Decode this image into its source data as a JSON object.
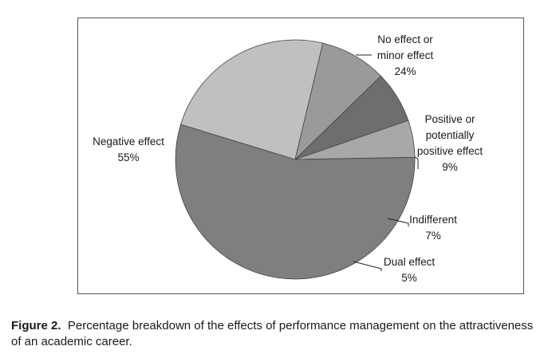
{
  "chart_data": {
    "type": "pie",
    "slices": [
      {
        "label_lines": [
          "No effect or",
          "minor effect"
        ],
        "value": 24,
        "value_label": "24%",
        "color": "#c0c0c0"
      },
      {
        "label_lines": [
          "Positive or",
          "potentially",
          "positive effect"
        ],
        "value": 9,
        "value_label": "9%",
        "color": "#9a9a9a"
      },
      {
        "label_lines": [
          "Indifferent"
        ],
        "value": 7,
        "value_label": "7%",
        "color": "#6e6e6e"
      },
      {
        "label_lines": [
          "Dual effect"
        ],
        "value": 5,
        "value_label": "5%",
        "color": "#a8a8a8"
      },
      {
        "label_lines": [
          "Negative effect"
        ],
        "value": 55,
        "value_label": "55%",
        "color": "#7f7f7f"
      }
    ],
    "slice_edge_color": "#444444"
  },
  "caption": {
    "figure_label": "Figure 2.",
    "text": "Percentage breakdown of the effects of performance management on the attractiveness of an academic career."
  }
}
